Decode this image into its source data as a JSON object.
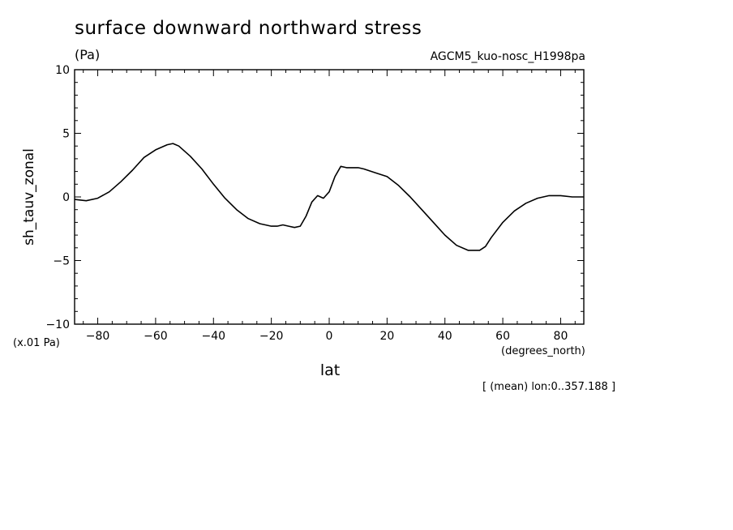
{
  "title": "surface downward northward stress",
  "units": "(Pa)",
  "run_label": "AGCM5_kuo-nosc_H1998pa",
  "y_scale_note": "(x.01 Pa)",
  "x_units": "(degrees_north)",
  "footnote": "[ (mean) lon:0..357.188 ]",
  "chart_data": {
    "type": "line",
    "title": "surface downward northward stress",
    "xlabel": "lat",
    "ylabel": "sh_tauv_zonal",
    "xlim": [
      -88,
      88
    ],
    "ylim": [
      -10,
      10
    ],
    "x_ticks": [
      -80,
      -60,
      -40,
      -20,
      0,
      20,
      40,
      60,
      80
    ],
    "x_tick_labels": [
      "−80",
      "−60",
      "−40",
      "−20",
      "0",
      "20",
      "40",
      "60",
      "80"
    ],
    "y_ticks": [
      -10,
      -5,
      0,
      5,
      10
    ],
    "y_tick_labels": [
      "−10",
      "−5",
      "0",
      "5",
      "10"
    ],
    "grid": false,
    "series": [
      {
        "x": [
          -88,
          -84,
          -80,
          -76,
          -72,
          -68,
          -64,
          -60,
          -56,
          -54,
          -52,
          -48,
          -44,
          -40,
          -36,
          -32,
          -28,
          -24,
          -20,
          -18,
          -16,
          -14,
          -12,
          -10,
          -8,
          -6,
          -4,
          -2,
          0,
          2,
          4,
          6,
          8,
          10,
          12,
          16,
          20,
          24,
          28,
          32,
          36,
          40,
          44,
          48,
          52,
          54,
          56,
          60,
          64,
          68,
          72,
          76,
          80,
          84,
          88
        ],
        "y": [
          -0.2,
          -0.3,
          -0.1,
          0.4,
          1.2,
          2.1,
          3.1,
          3.7,
          4.1,
          4.2,
          4.0,
          3.2,
          2.2,
          1.0,
          -0.1,
          -1.0,
          -1.7,
          -2.1,
          -2.3,
          -2.3,
          -2.2,
          -2.3,
          -2.4,
          -2.3,
          -1.5,
          -0.4,
          0.1,
          -0.1,
          0.4,
          1.6,
          2.4,
          2.3,
          2.3,
          2.3,
          2.2,
          1.9,
          1.6,
          0.9,
          0.0,
          -1.0,
          -2.0,
          -3.0,
          -3.8,
          -4.2,
          -4.2,
          -3.9,
          -3.2,
          -2.0,
          -1.1,
          -0.5,
          -0.1,
          0.1,
          0.1,
          0.0,
          0.0
        ]
      }
    ]
  }
}
